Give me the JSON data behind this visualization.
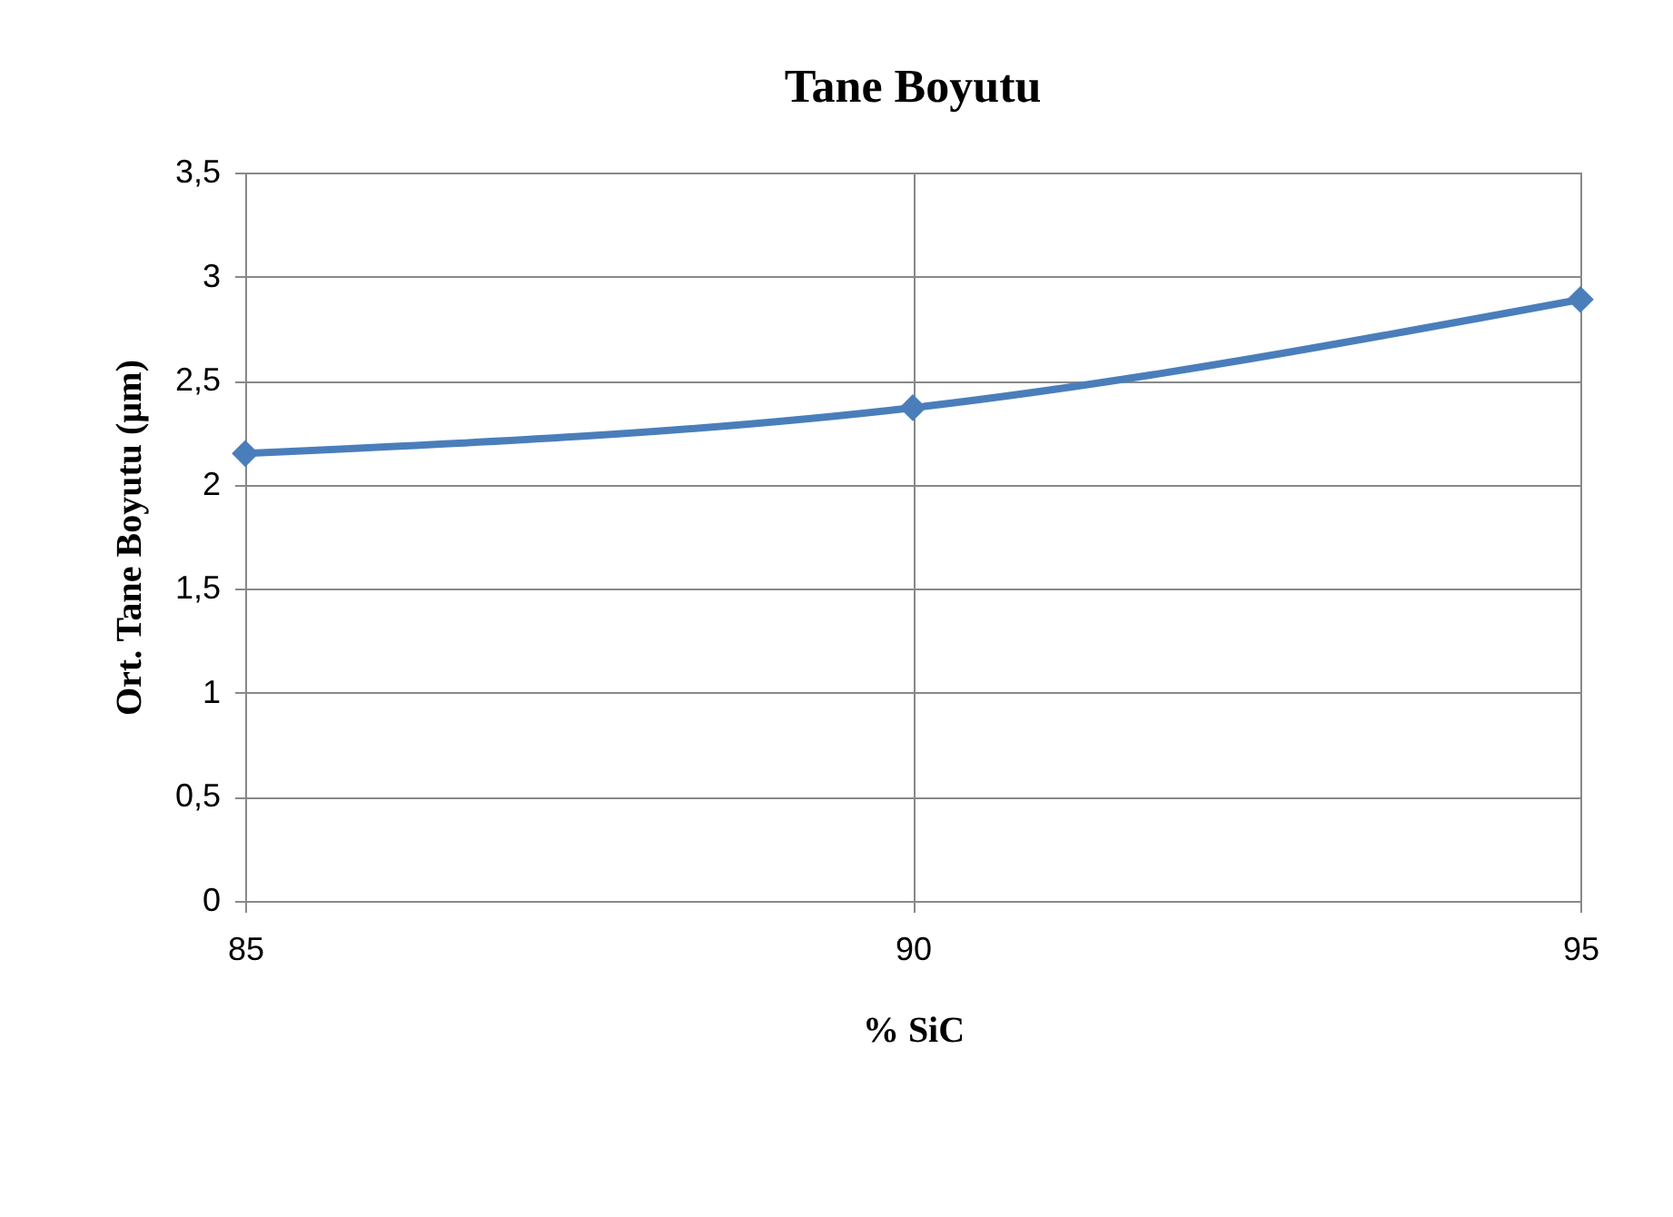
{
  "chart_data": {
    "type": "line",
    "title": "Tane Boyutu",
    "xlabel": "% SiC",
    "ylabel": "Ort. Tane Boyutu (µm)",
    "x": [
      85,
      90,
      95
    ],
    "series": [
      {
        "color": "#4a7ebb",
        "values": [
          2.15,
          2.37,
          2.89
        ]
      }
    ],
    "xlim": [
      85,
      95
    ],
    "xticks": [
      85,
      90,
      95
    ],
    "ylim": [
      0,
      3.5
    ],
    "yticks": [
      0,
      {
        "value": 0.5,
        "label": "0,5"
      },
      1,
      {
        "value": 1.5,
        "label": "1,5"
      },
      2,
      {
        "value": 2.5,
        "label": "2,5"
      },
      3,
      {
        "value": 3.5,
        "label": "3,5"
      }
    ],
    "grid": true,
    "marker": "diamond",
    "line_style": "solid"
  }
}
